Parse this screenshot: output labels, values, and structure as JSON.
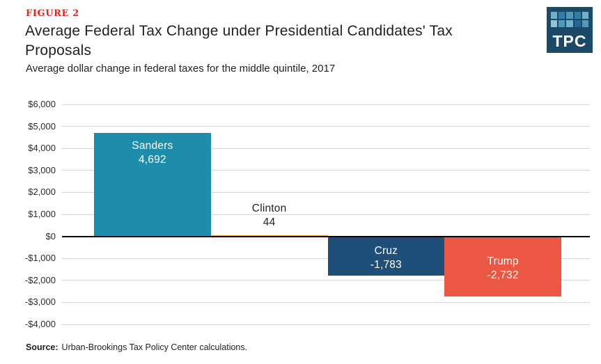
{
  "header": {
    "figure_label": "FIGURE 2",
    "title": "Average Federal Tax Change under Presidential Candidates' Tax Proposals",
    "subtitle": "Average dollar change in federal taxes for the middle quintile, 2017"
  },
  "logo": {
    "text": "TPC",
    "bg_color": "#1d4969",
    "square_colors": [
      "#6fb1c9",
      "#2d7fa3",
      "#4e9ab8",
      "#2d7fa3",
      "#6fb1c9",
      "#8fc3d6",
      "#4e9ab8",
      "#6fb1c9",
      "#1f6a8f",
      "#4e9ab8"
    ]
  },
  "chart_data": {
    "type": "bar",
    "title": "Average Federal Tax Change under Presidential Candidates' Tax Proposals",
    "subtitle": "Average dollar change in federal taxes for the middle quintile, 2017",
    "categories": [
      "Sanders",
      "Clinton",
      "Cruz",
      "Trump"
    ],
    "values": [
      4692,
      44,
      -1783,
      -2732
    ],
    "bar_colors": [
      "#1e8cab",
      "#efa22d",
      "#1f4e79",
      "#ec5744"
    ],
    "label_positions": [
      "inside-top",
      "above",
      "center",
      "center"
    ],
    "label_colors": [
      "#ffffff",
      "#231f20",
      "#ffffff",
      "#ffffff"
    ],
    "ylim": [
      -4000,
      6000
    ],
    "ytick_step": 1000,
    "ytick_labels": [
      "$6,000",
      "$5,000",
      "$4,000",
      "$3,000",
      "$2,000",
      "$1,000",
      "$0",
      "-$1,000",
      "-$2,000",
      "-$3,000",
      "-$4,000"
    ],
    "grid": true,
    "legend": "none",
    "gridline_color": "#d9d9d9",
    "zero_line_color": "#000000"
  },
  "source": {
    "label": "Source:",
    "text": "Urban-Brookings Tax Policy Center calculations."
  }
}
